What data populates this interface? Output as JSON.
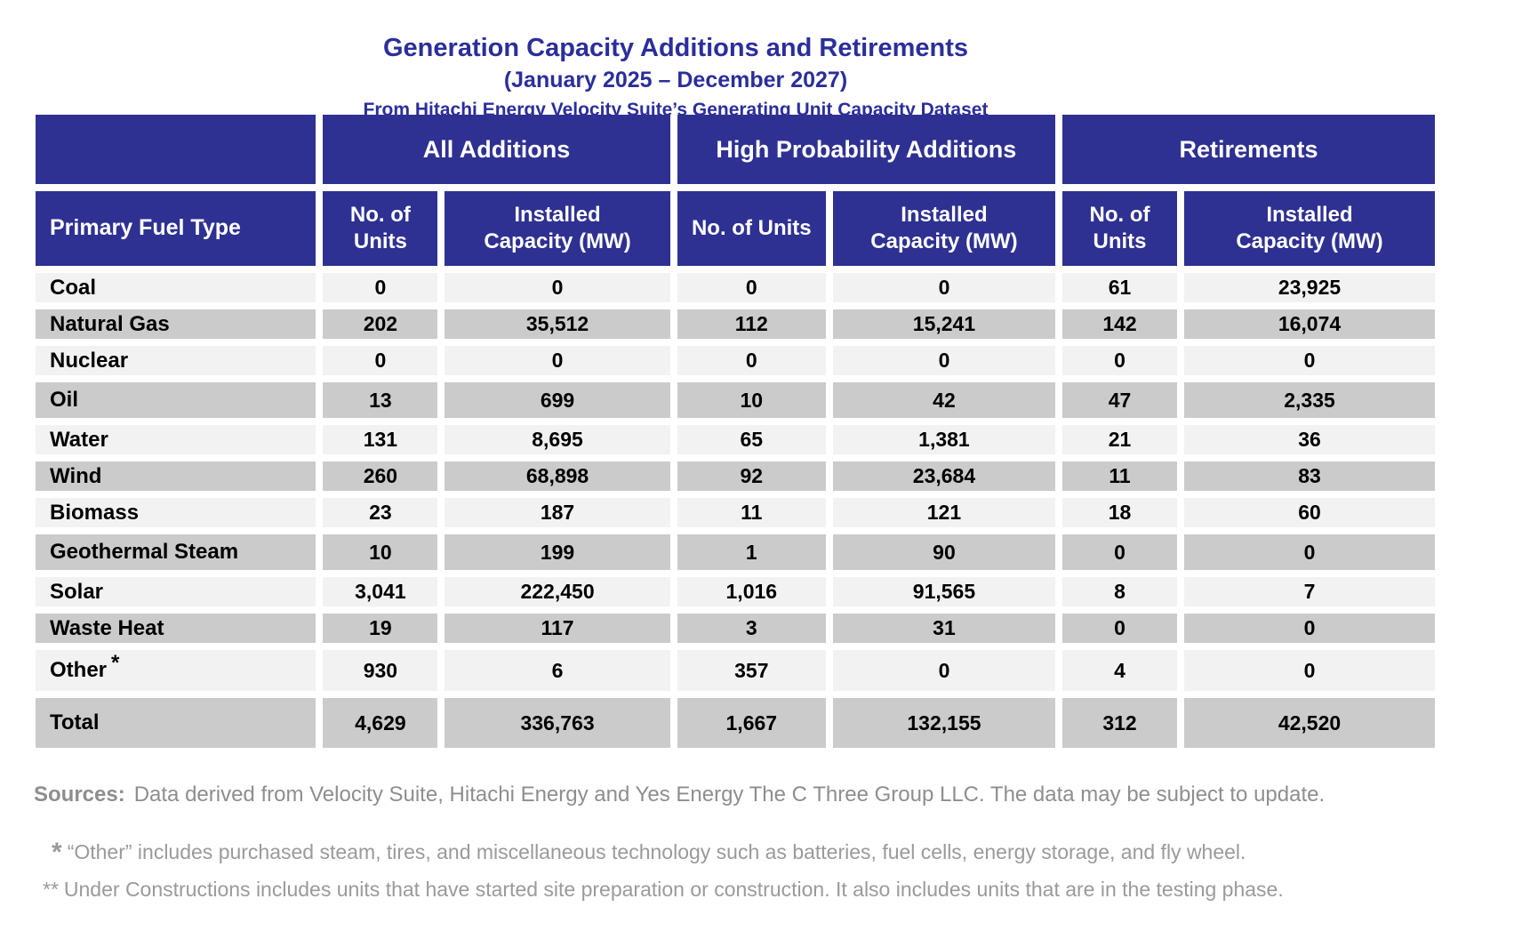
{
  "title": {
    "line1": "Generation Capacity Additions and Retirements",
    "line2": "(January 2025 – December 2027)",
    "line3": "From Hitachi Energy Velocity Suite’s Generating Unit Capacity Dataset"
  },
  "colors": {
    "header_blue": "#2e3192",
    "title_blue": "#2b2e9b",
    "row_light": "#f2f2f2",
    "row_dark": "#cbcbcb",
    "footer_gray": "#8e8e8e",
    "footnote_gray": "#9a9a9a"
  },
  "table": {
    "group_headers": [
      "All Additions",
      "High Probability Additions",
      "Retirements"
    ],
    "col_headers": {
      "fuel": "Primary Fuel Type",
      "units": "No. of Units",
      "capacity": "Installed Capacity (MW)"
    },
    "rows": [
      {
        "fuel": "Coal",
        "values": [
          "0",
          "0",
          "0",
          "0",
          "61",
          "23,925"
        ]
      },
      {
        "fuel": "Natural Gas",
        "values": [
          "202",
          "35,512",
          "112",
          "15,241",
          "142",
          "16,074"
        ]
      },
      {
        "fuel": "Nuclear",
        "values": [
          "0",
          "0",
          "0",
          "0",
          "0",
          "0"
        ]
      },
      {
        "fuel": "Oil",
        "values": [
          "13",
          "699",
          "10",
          "42",
          "47",
          "2,335"
        ]
      },
      {
        "fuel": "Water",
        "values": [
          "131",
          "8,695",
          "65",
          "1,381",
          "21",
          "36"
        ]
      },
      {
        "fuel": "Wind",
        "values": [
          "260",
          "68,898",
          "92",
          "23,684",
          "11",
          "83"
        ]
      },
      {
        "fuel": "Biomass",
        "values": [
          "23",
          "187",
          "11",
          "121",
          "18",
          "60"
        ]
      },
      {
        "fuel": "Geothermal Steam",
        "values": [
          "10",
          "199",
          "1",
          "90",
          "0",
          "0"
        ]
      },
      {
        "fuel": "Solar",
        "values": [
          "3,041",
          "222,450",
          "1,016",
          "91,565",
          "8",
          "7"
        ]
      },
      {
        "fuel": "Waste Heat",
        "values": [
          "19",
          "117",
          "3",
          "31",
          "0",
          "0"
        ]
      },
      {
        "fuel": "Other",
        "note": "*",
        "values": [
          "930",
          "6",
          "357",
          "0",
          "4",
          "0"
        ]
      },
      {
        "fuel": "Total",
        "values": [
          "4,629",
          "336,763",
          "1,667",
          "132,155",
          "312",
          "42,520"
        ]
      }
    ]
  },
  "footer": {
    "sources_label": "Sources:",
    "sources_text": "Data derived from Velocity Suite, Hitachi Energy and Yes Energy The C Three Group LLC.  The data may be subject to update.",
    "footnote1_marker": "*",
    "footnote1_text": "“Other” includes purchased steam, tires, and miscellaneous technology such as batteries, fuel cells, energy storage, and fly wheel.",
    "footnote2_marker": "**",
    "footnote2_text": "Under Constructions includes units that have started site preparation or construction.  It also includes units that are in the testing phase."
  },
  "chart_data": {
    "type": "table",
    "title": "Generation Capacity Additions and Retirements",
    "subtitle": "(January 2025 – December 2027)",
    "source_note": "From Hitachi Energy Velocity Suite’s Generating Unit Capacity Dataset",
    "column_groups": [
      "All Additions",
      "High Probability Additions",
      "Retirements"
    ],
    "columns": [
      "Primary Fuel Type",
      "All Additions - No. of Units",
      "All Additions - Installed Capacity (MW)",
      "High Probability Additions - No. of Units",
      "High Probability Additions - Installed Capacity (MW)",
      "Retirements - No. of Units",
      "Retirements - Installed Capacity (MW)"
    ],
    "rows": [
      [
        "Coal",
        0,
        0,
        0,
        0,
        61,
        23925
      ],
      [
        "Natural Gas",
        202,
        35512,
        112,
        15241,
        142,
        16074
      ],
      [
        "Nuclear",
        0,
        0,
        0,
        0,
        0,
        0
      ],
      [
        "Oil",
        13,
        699,
        10,
        42,
        47,
        2335
      ],
      [
        "Water",
        131,
        8695,
        65,
        1381,
        21,
        36
      ],
      [
        "Wind",
        260,
        68898,
        92,
        23684,
        11,
        83
      ],
      [
        "Biomass",
        23,
        187,
        11,
        121,
        18,
        60
      ],
      [
        "Geothermal Steam",
        10,
        199,
        1,
        90,
        0,
        0
      ],
      [
        "Solar",
        3041,
        222450,
        1016,
        91565,
        8,
        7
      ],
      [
        "Waste Heat",
        19,
        117,
        3,
        31,
        0,
        0
      ],
      [
        "Other",
        930,
        6,
        357,
        0,
        4,
        0
      ],
      [
        "Total",
        4629,
        336763,
        1667,
        132155,
        312,
        42520
      ]
    ]
  }
}
